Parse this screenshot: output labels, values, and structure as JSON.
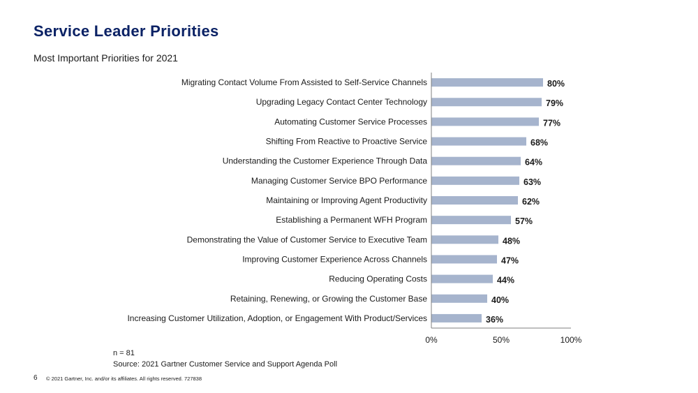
{
  "header": {
    "title": "Service Leader Priorities",
    "subtitle": "Most Important Priorities for 2021"
  },
  "chart_data": {
    "type": "bar",
    "orientation": "horizontal",
    "categories": [
      "Migrating  Contact Volume From Assisted to Self-Service Channels",
      "Upgrading  Legacy Contact Center Technology",
      "Automating  Customer Service Processes",
      "Shifting From Reactive to Proactive Service",
      "Understanding  the Customer Experience Through Data",
      "Managing  Customer Service BPO Performance",
      "Maintaining  or Improving Agent Productivity",
      "Establishing a Permanent WFH Program",
      "Demonstrating the Value  of Customer Service to Executive Team",
      "Improving  Customer Experience Across Channels",
      "Reducing Operating Costs",
      "Retaining, Renewing, or Growing the Customer Base",
      "Increasing Customer Utilization, Adoption,  or Engagement With Product/Services"
    ],
    "values": [
      80,
      79,
      77,
      68,
      64,
      63,
      62,
      57,
      48,
      47,
      44,
      40,
      36
    ],
    "value_labels": [
      "80%",
      "79%",
      "77%",
      "68%",
      "64%",
      "63%",
      "62%",
      "57%",
      "48%",
      "47%",
      "44%",
      "40%",
      "36%"
    ],
    "xlim": [
      0,
      100
    ],
    "x_ticks": [
      "0%",
      "50%",
      "100%"
    ],
    "grid": false,
    "bar_color": "#a6b4cd"
  },
  "notes": {
    "n": "n = 81",
    "source": "Source: 2021 Gartner Customer Service and Support Agenda Poll"
  },
  "footer": {
    "page_number": "6",
    "copyright": "© 2021 Gartner, Inc. and/or its affiliates. All rights reserved. 727838"
  }
}
